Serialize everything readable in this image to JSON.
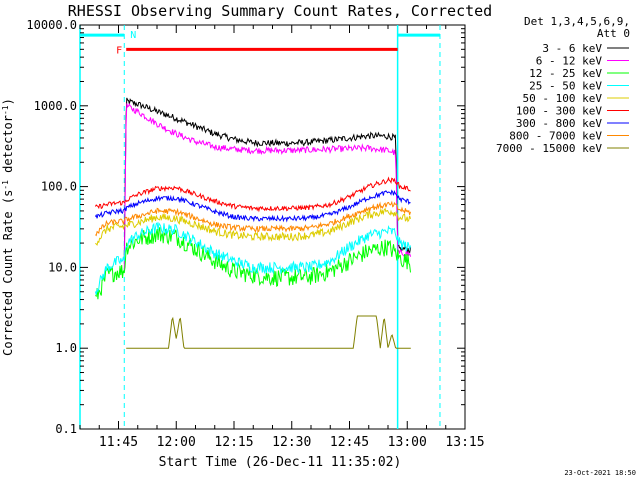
{
  "chart_data": {
    "type": "line",
    "title": "RHESSI Observing Summary Count Rates, Corrected",
    "xlabel": "Start Time (26-Dec-11 11:35:02)",
    "ylabel": "Corrected Count Rate (s⁻¹ detector⁻¹)",
    "ylabel_parts": [
      "Corrected Count Rate (s",
      "-1",
      " detector",
      "-1",
      ")"
    ],
    "yscale": "log",
    "ylim": [
      0.1,
      10000
    ],
    "xlim_minutes": [
      35,
      135
    ],
    "y_ticks": [
      {
        "value": 10000,
        "label": "10000.0"
      },
      {
        "value": 1000,
        "label": "1000.0"
      },
      {
        "value": 100,
        "label": "100.0"
      },
      {
        "value": 10,
        "label": "10.0"
      },
      {
        "value": 1,
        "label": "1.0"
      },
      {
        "value": 0.1,
        "label": "0.1"
      }
    ],
    "x_ticks": [
      {
        "minute": 45,
        "label": "11:45"
      },
      {
        "minute": 60,
        "label": "12:00"
      },
      {
        "minute": 75,
        "label": "12:15"
      },
      {
        "minute": 90,
        "label": "12:30"
      },
      {
        "minute": 105,
        "label": "12:45"
      },
      {
        "minute": 120,
        "label": "13:00"
      },
      {
        "minute": 135,
        "label": "13:15"
      }
    ],
    "legend": {
      "placement": "right",
      "header": [
        "Det 1,3,4,5,6,9,",
        "Att 0"
      ]
    },
    "series": [
      {
        "name": "3 - 6 keV",
        "color": "#000000",
        "x": [
          46.5,
          47,
          50,
          55,
          60,
          65,
          70,
          75,
          80,
          85,
          90,
          95,
          100,
          105,
          110,
          115,
          117,
          117.5,
          118,
          120,
          121
        ],
        "y": [
          12,
          1150,
          1050,
          850,
          700,
          560,
          450,
          385,
          350,
          345,
          345,
          355,
          375,
          400,
          425,
          420,
          400,
          18,
          17,
          17,
          16
        ]
      },
      {
        "name": "6 - 12 keV",
        "color": "#ff00ff",
        "x": [
          46.5,
          47,
          50,
          55,
          60,
          65,
          70,
          75,
          80,
          85,
          90,
          95,
          100,
          105,
          110,
          115,
          117,
          117.5,
          118,
          120,
          121
        ],
        "y": [
          9,
          1000,
          850,
          600,
          450,
          360,
          310,
          290,
          280,
          280,
          280,
          285,
          290,
          295,
          300,
          280,
          260,
          16,
          15,
          15,
          14
        ]
      },
      {
        "name": "12 - 25 keV",
        "color": "#00ff00",
        "x": [
          39,
          42,
          45,
          46.5,
          47,
          50,
          55,
          60,
          65,
          70,
          75,
          80,
          85,
          90,
          95,
          100,
          105,
          110,
          115,
          117,
          117.5,
          118,
          120,
          121
        ],
        "y": [
          4,
          8,
          9,
          9,
          18,
          22,
          26,
          24,
          17,
          12,
          9,
          8,
          7.5,
          7.5,
          7.7,
          9,
          12,
          16,
          18,
          15,
          14,
          13,
          12,
          11
        ]
      },
      {
        "name": "25 - 50 keV",
        "color": "#00ffff",
        "x": [
          39,
          42,
          45,
          46.5,
          47,
          50,
          55,
          60,
          65,
          70,
          75,
          80,
          85,
          90,
          95,
          100,
          105,
          110,
          115,
          117,
          117.5,
          118,
          120,
          121
        ],
        "y": [
          5,
          10,
          12,
          12,
          20,
          25,
          31,
          29,
          21,
          15,
          12,
          10,
          10,
          10,
          10,
          12,
          18,
          25,
          28,
          27,
          22,
          20,
          18,
          17
        ]
      },
      {
        "name": "50 - 100 keV",
        "color": "#ddcc00",
        "x": [
          39,
          42,
          45,
          46.5,
          47,
          50,
          55,
          60,
          65,
          70,
          75,
          80,
          85,
          90,
          95,
          100,
          105,
          110,
          115,
          117,
          117.5,
          118,
          120,
          121
        ],
        "y": [
          20,
          30,
          32,
          32,
          33,
          36,
          42,
          40,
          34,
          28,
          25,
          24,
          24,
          24,
          25,
          28,
          36,
          45,
          50,
          48,
          44,
          42,
          40,
          39
        ]
      },
      {
        "name": "100 - 300 keV",
        "color": "#ff0000",
        "x": [
          39,
          42,
          45,
          46.5,
          47,
          50,
          55,
          60,
          65,
          70,
          75,
          80,
          85,
          90,
          95,
          100,
          105,
          110,
          115,
          117,
          117.5,
          118,
          120,
          121
        ],
        "y": [
          55,
          60,
          63,
          63,
          68,
          80,
          95,
          97,
          80,
          66,
          57,
          54,
          54,
          54,
          55,
          60,
          75,
          100,
          120,
          118,
          110,
          100,
          95,
          92
        ]
      },
      {
        "name": "300 - 800 keV",
        "color": "#0000ff",
        "x": [
          39,
          42,
          45,
          46.5,
          47,
          50,
          55,
          60,
          65,
          70,
          75,
          80,
          85,
          90,
          95,
          100,
          105,
          110,
          115,
          117,
          117.5,
          118,
          120,
          121
        ],
        "y": [
          42,
          47,
          50,
          50,
          54,
          62,
          72,
          72,
          60,
          49,
          42,
          40,
          40,
          40,
          41,
          45,
          56,
          73,
          85,
          83,
          75,
          70,
          66,
          64
        ]
      },
      {
        "name": "800 - 7000 keV",
        "color": "#ff8800",
        "x": [
          39,
          42,
          45,
          46.5,
          47,
          50,
          55,
          60,
          65,
          70,
          75,
          80,
          85,
          90,
          95,
          100,
          105,
          110,
          115,
          117,
          117.5,
          118,
          120,
          121
        ],
        "y": [
          26,
          35,
          37,
          37,
          39,
          43,
          50,
          49,
          41,
          34,
          31,
          30,
          30,
          30,
          31,
          35,
          43,
          54,
          60,
          58,
          54,
          52,
          49,
          47
        ]
      },
      {
        "name": "7000 - 15000 keV",
        "color": "#808000",
        "x": [
          47,
          50,
          55,
          58,
          59,
          60,
          61,
          62,
          65,
          75,
          90,
          101,
          102,
          105,
          106,
          107,
          110,
          112,
          113,
          114,
          115,
          116,
          117,
          118,
          120,
          121
        ],
        "y": [
          1,
          1,
          1,
          1,
          2.5,
          1.3,
          2.5,
          1,
          1,
          1,
          1,
          1,
          1,
          1,
          1,
          2.5,
          2.5,
          2.5,
          1,
          2.5,
          1,
          1.5,
          1,
          1,
          1,
          1
        ]
      }
    ],
    "annotations": [
      {
        "label": "F",
        "color": "#ff0000",
        "type": "flag-bar",
        "x_start": 47,
        "x_end": 117.5,
        "y": 5000
      },
      {
        "label": "N",
        "color": "#00ffff",
        "type": "flag-bar-gap",
        "x_start": 47,
        "x_end": 117.5,
        "y": 7500
      }
    ],
    "night_intervals": [
      {
        "solid_edge_minute": 35,
        "dashed_edge_minute": 46.5
      },
      {
        "solid_edge_minute": 117.5,
        "dashed_edge_minute": 128.5
      }
    ],
    "colors": {
      "night_band": "#00ffff",
      "flare_bar": "#ff0000",
      "axes": "#000000"
    }
  },
  "footer": {
    "timestamp": "23-Oct-2021 18:50"
  }
}
